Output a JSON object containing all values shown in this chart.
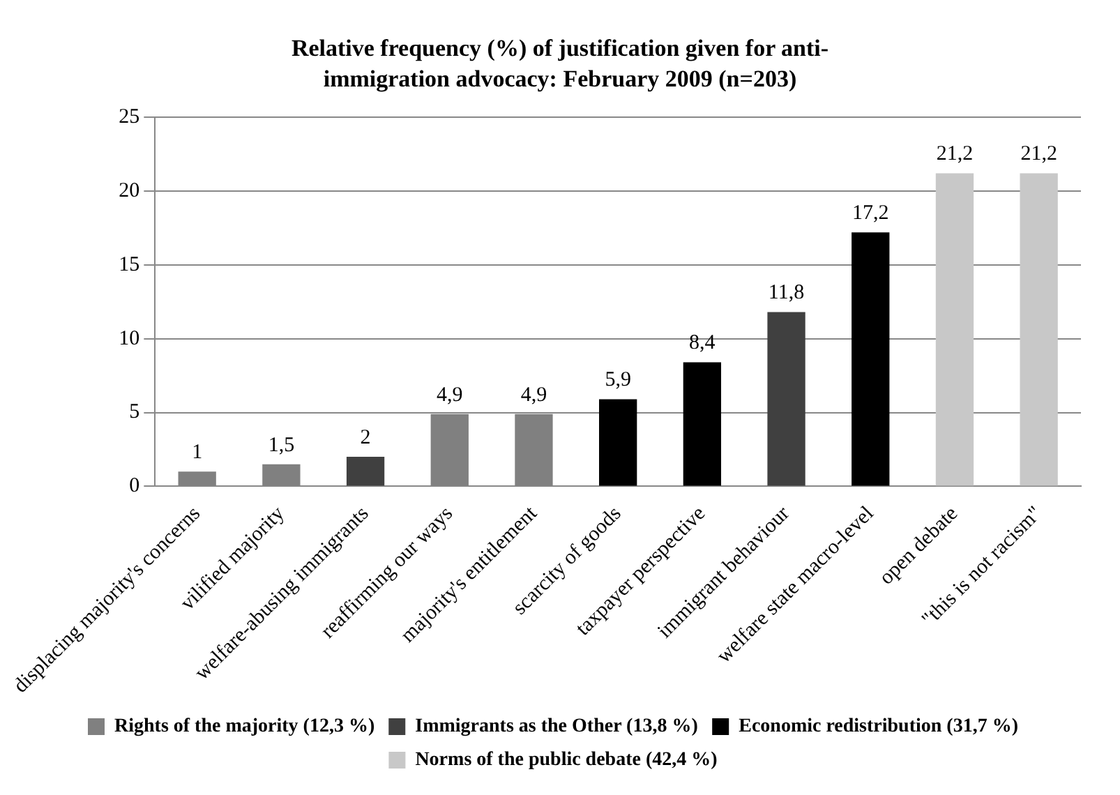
{
  "chart_data": {
    "type": "bar",
    "title": "Relative frequency (%) of justification given for anti-immigration advocacy: February 2009 (n=203)",
    "categories": [
      "displacing majority's concerns",
      "vilified majority",
      "welfare-abusing immigrants",
      "reaffirming our ways",
      "majority's entitlement",
      "scarcity of goods",
      "taxpayer perspective",
      "immigrant behaviour",
      "welfare state macro-level",
      "open debate",
      "\"this is not racism\""
    ],
    "series": [
      {
        "name": "Rights of the majority (12,3 %)",
        "color": "#808080",
        "values": [
          1,
          1.5,
          null,
          4.9,
          4.9,
          null,
          null,
          null,
          null,
          null,
          null
        ],
        "value_labels": [
          "1",
          "1,5",
          null,
          "4,9",
          "4,9",
          null,
          null,
          null,
          null,
          null,
          null
        ]
      },
      {
        "name": "Immigrants as the Other (13,8 %)",
        "color": "#404040",
        "values": [
          null,
          null,
          2,
          null,
          null,
          null,
          null,
          11.8,
          null,
          null,
          null
        ],
        "value_labels": [
          null,
          null,
          "2",
          null,
          null,
          null,
          null,
          "11,8",
          null,
          null,
          null
        ]
      },
      {
        "name": "Economic redistribution (31,7 %)",
        "color": "#000000",
        "values": [
          null,
          null,
          null,
          null,
          null,
          5.9,
          8.4,
          null,
          17.2,
          null,
          null
        ],
        "value_labels": [
          null,
          null,
          null,
          null,
          null,
          "5,9",
          "8,4",
          null,
          "17,2",
          null,
          null
        ]
      },
      {
        "name": "Norms of the public debate (42,4 %)",
        "color": "#c8c8c8",
        "values": [
          null,
          null,
          null,
          null,
          null,
          null,
          null,
          null,
          null,
          21.2,
          21.2
        ],
        "value_labels": [
          null,
          null,
          null,
          null,
          null,
          null,
          null,
          null,
          null,
          "21,2",
          "21,2"
        ]
      }
    ],
    "ylim": [
      0,
      25
    ],
    "yticks": [
      0,
      5,
      10,
      15,
      20,
      25
    ],
    "grid": "y",
    "legend": "bottom"
  }
}
